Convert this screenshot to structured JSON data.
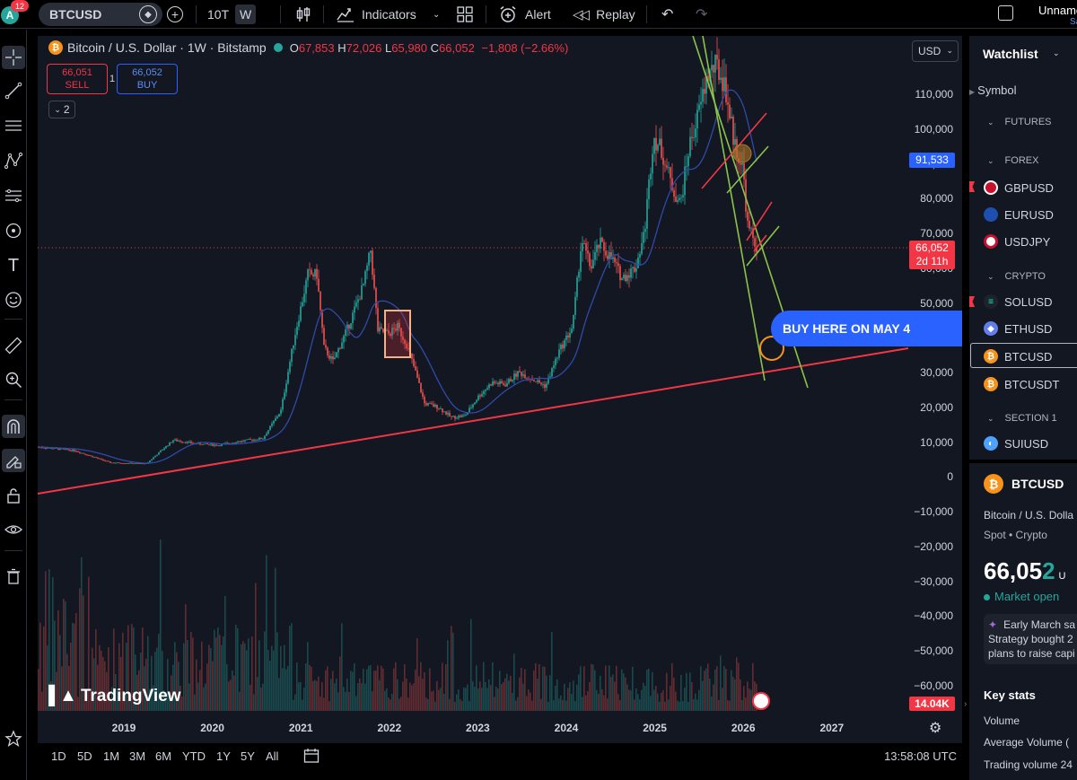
{
  "topbar": {
    "avatar_letter": "A",
    "notification_count": "12",
    "symbol": "BTCUSD",
    "interval_custom": "10T",
    "interval_active": "W",
    "indicators_label": "Indicators",
    "alert_label": "Alert",
    "replay_label": "Replay",
    "layout_name": "Unnamed",
    "save_label": "Save"
  },
  "chart": {
    "instrument": "Bitcoin / U.S. Dollar · 1W · Bitstamp",
    "ohlc": {
      "o_label": "O",
      "o": "67,853",
      "h_label": "H",
      "h": "72,026",
      "l_label": "L",
      "l": "65,980",
      "c_label": "C",
      "c": "66,052",
      "change": "−1,808 (−2.66%)"
    },
    "sell_price": "66,051",
    "sell_label": "SELL",
    "buy_price": "66,052",
    "buy_label": "BUY",
    "quantity": "1",
    "collapsed_count": "2",
    "currency": "USD",
    "price_ticks": [
      "110,000",
      "100,000",
      "90,000",
      "80,000",
      "70,000",
      "60,000",
      "50,000",
      "40,000",
      "30,000",
      "20,000",
      "10,000",
      "0",
      "−10,000",
      "−20,000",
      "−30,000",
      "−40,000",
      "−50,000",
      "−60,000"
    ],
    "ma_price_label": "91,533",
    "last_price_label": "66,052",
    "last_price_countdown": "2d 11h",
    "volume_label": "14.04K",
    "years": [
      "2019",
      "2020",
      "2021",
      "2022",
      "2023",
      "2024",
      "2025",
      "2026",
      "2027"
    ],
    "annotation": "BUY HERE ON MAY 4",
    "brand": "TradingView",
    "colors": {
      "background": "#131722",
      "up": "#26a69a",
      "down": "#ef5350",
      "support_line": "#f23645",
      "channel": "#8bc34a",
      "ma": "#2f4aa8",
      "callout": "#2962ff"
    }
  },
  "bottombar": {
    "ranges": [
      "1D",
      "5D",
      "1M",
      "3M",
      "6M",
      "YTD",
      "1Y",
      "5Y",
      "All"
    ],
    "clock": "13:58:08 UTC"
  },
  "watchlist": {
    "title": "Watchlist",
    "column_symbol": "Symbol",
    "sections": [
      "FUTURES",
      "FOREX",
      "CRYPTO",
      "SECTION 1"
    ],
    "forex": [
      "GBPUSD",
      "EURUSD",
      "USDJPY"
    ],
    "crypto": [
      "SOLUSD",
      "ETHUSD",
      "BTCUSD",
      "BTCUSDT"
    ],
    "section1": [
      "SUIUSD"
    ]
  },
  "details": {
    "symbol": "BTCUSD",
    "name": "Bitcoin / U.S. Dolla",
    "type": "Spot • Crypto",
    "price_main": "66,05",
    "price_last_digit": "2",
    "price_currency": "U",
    "market_status": "Market open",
    "news_line1": "Early March sa",
    "news_line2": "Strategy bought 2",
    "news_line3": "plans to raise capi",
    "key_stats_title": "Key stats",
    "stat1": "Volume",
    "stat2": "Average Volume (",
    "stat3": "Trading volume 24"
  }
}
